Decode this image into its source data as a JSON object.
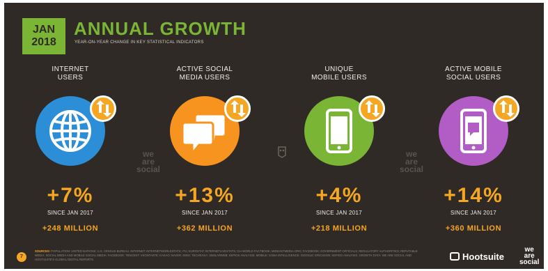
{
  "badge": {
    "month": "JAN",
    "year": "2018"
  },
  "title": "ANNUAL GROWTH",
  "subtitle": "YEAR-ON-YEAR CHANGE IN KEY STATISTICAL INDICATORS",
  "colors": {
    "background": "#2f2a26",
    "accent_green": "#7ab536",
    "accent_orange": "#f5a623",
    "internet_blue": "#2c8ed6",
    "social_orange": "#f79420",
    "mobile_green": "#7ab536",
    "mobile_social_purple": "#b25dc6"
  },
  "stats": [
    {
      "label_line1": "INTERNET",
      "label_line2": "USERS",
      "icon": "globe-icon",
      "change_pct": "+7%",
      "since": "SINCE JAN 2017",
      "change_abs": "+248 MILLION"
    },
    {
      "label_line1": "ACTIVE SOCIAL",
      "label_line2": "MEDIA USERS",
      "icon": "speech-bubbles-icon",
      "change_pct": "+13%",
      "since": "SINCE JAN 2017",
      "change_abs": "+362 MILLION"
    },
    {
      "label_line1": "UNIQUE",
      "label_line2": "MOBILE USERS",
      "icon": "mobile-phone-icon",
      "change_pct": "+4%",
      "since": "SINCE JAN 2017",
      "change_abs": "+218 MILLION"
    },
    {
      "label_line1": "ACTIVE MOBILE",
      "label_line2": "SOCIAL USERS",
      "icon": "mobile-chat-icon",
      "change_pct": "+14%",
      "since": "SINCE JAN 2017",
      "change_abs": "+360 MILLION"
    }
  ],
  "change_badge_icon": "up-down-arrows-icon",
  "watermark": {
    "line1": "we",
    "line2": "are",
    "line3": "social"
  },
  "footer": {
    "page_number": "7",
    "sources_label": "SOURCES:",
    "sources_text": "POPULATION: UNITED NATIONS; U.S. CENSUS BUREAU. INTERNET: INTERNETWORLDSTATS; ITU; EUROSTAT; INTERNETLIVESTATS; CIA WORLD FACTBOOK; MIDEASTMEDIA.ORG; FACEBOOK; GOVERNMENT OFFICIALS; REGULATORY AUTHORITIES; REPUTABLE MEDIA. SOCIAL MEDIA AND MOBILE SOCIAL MEDIA: FACEBOOK; TENCENT; VKONTAKTE; KAKAO; NAVER; DING; TECHRASA; SIMILARWEB; KEPIOS ANALYSIS. MOBILE: GSMA INTELLIGENCE; GOOGLE; ERICSSON; KEPIOS ANALYSIS. GROWTH DATA: WE ARE SOCIAL AND HOOTSUITE'S GLOBAL DIGITAL REPORTS.",
    "hootsuite": "Hootsuite",
    "was_line1": "we",
    "was_line2": "are",
    "was_line3": "social"
  }
}
